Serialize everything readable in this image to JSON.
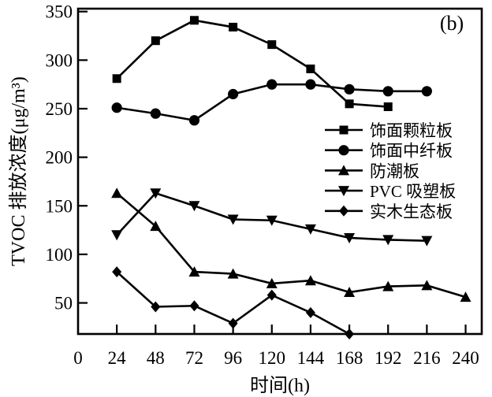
{
  "figure": {
    "panel_label": "(b)",
    "background": "#ffffff",
    "ink_color": "#000000"
  },
  "chart_data": {
    "type": "line",
    "title": "",
    "panel_label": "(b)",
    "xlabel": "时间(h)",
    "ylabel": "TVOC 排放浓度(μg/m³)",
    "xlim": [
      0,
      250
    ],
    "ylim_draw": [
      18,
      353
    ],
    "x_ticks": [
      0,
      24,
      48,
      72,
      96,
      120,
      144,
      168,
      192,
      216,
      240
    ],
    "y_ticks": [
      50,
      100,
      150,
      200,
      250,
      300,
      350
    ],
    "grid": false,
    "legend_position": "middle-right",
    "ink": "#000000",
    "series": [
      {
        "name": "饰面颗粒板",
        "marker": "square",
        "color": "#000000",
        "x": [
          24,
          48,
          72,
          96,
          120,
          144,
          168,
          192
        ],
        "values": [
          281,
          320,
          341,
          334,
          316,
          291,
          255,
          252
        ]
      },
      {
        "name": "饰面中纤板",
        "marker": "circle",
        "color": "#000000",
        "x": [
          24,
          48,
          72,
          96,
          120,
          144,
          168,
          192,
          216
        ],
        "values": [
          251,
          245,
          238,
          265,
          275,
          275,
          270,
          268,
          268
        ]
      },
      {
        "name": "防潮板",
        "marker": "triangle-up",
        "color": "#000000",
        "x": [
          24,
          48,
          72,
          96,
          120,
          144,
          168,
          192,
          216,
          240
        ],
        "values": [
          163,
          129,
          82,
          80,
          70,
          73,
          61,
          67,
          68,
          56
        ]
      },
      {
        "name": "PVC 吸塑板",
        "marker": "triangle-down",
        "color": "#000000",
        "x": [
          24,
          48,
          72,
          96,
          120,
          144,
          168,
          192,
          216
        ],
        "values": [
          120,
          163,
          150,
          136,
          135,
          126,
          117,
          115,
          114
        ]
      },
      {
        "name": "实木生态板",
        "marker": "diamond",
        "color": "#000000",
        "x": [
          24,
          48,
          72,
          96,
          120,
          144,
          168
        ],
        "values": [
          82,
          46,
          47,
          29,
          58,
          40,
          18
        ]
      }
    ]
  }
}
